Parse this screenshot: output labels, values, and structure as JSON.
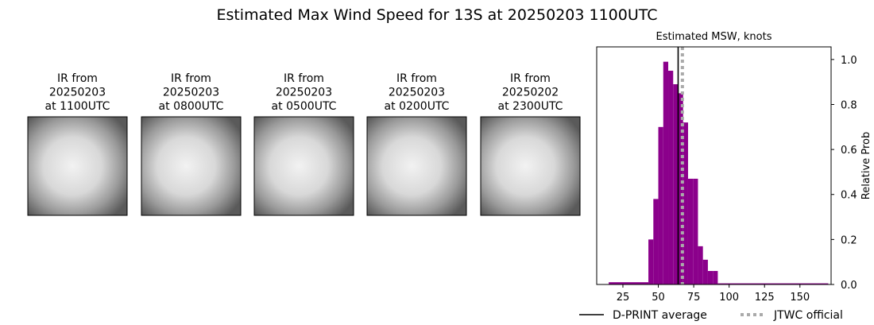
{
  "title": "Estimated Max Wind Speed for 13S at 20250203 1100UTC",
  "panels": [
    {
      "lines": [
        "IR from",
        "20250203",
        "at 1100UTC"
      ]
    },
    {
      "lines": [
        "IR from",
        "20250203",
        "at 0800UTC"
      ]
    },
    {
      "lines": [
        "IR from",
        "20250203",
        "at 0500UTC"
      ]
    },
    {
      "lines": [
        "IR from",
        "20250203",
        "at 0200UTC"
      ]
    },
    {
      "lines": [
        "IR from",
        "20250202",
        "at 2300UTC"
      ]
    }
  ],
  "chart_data": {
    "type": "histogram",
    "title": "Estimated MSW, knots",
    "y_label": "Relative Prob",
    "bins": [
      15,
      43,
      46.5,
      50,
      53.5,
      57,
      60.5,
      64,
      67.5,
      71,
      74.5,
      78,
      81.5,
      85,
      88.5,
      92,
      170
    ],
    "values": [
      0.01,
      0.2,
      0.38,
      0.7,
      0.99,
      0.95,
      0.89,
      0.85,
      0.72,
      0.47,
      0.47,
      0.17,
      0.11,
      0.06,
      0.06,
      0.005
    ],
    "color": "#8b008b",
    "xlim": [
      6.5,
      172
    ],
    "xticks": [
      25,
      50,
      75,
      100,
      125,
      150
    ],
    "ylim": [
      0,
      1.056
    ],
    "yticks": [
      {
        "value": 0,
        "label": "0.0"
      },
      0.2,
      0.4,
      0.6,
      0.8,
      {
        "value": 1,
        "label": "1.0"
      }
    ],
    "reference_lines": [
      {
        "name": "D-PRINT average",
        "value": 64,
        "color": "#000000",
        "style": "solid"
      },
      {
        "name": "JTWC official",
        "value": 67,
        "color": "#aaaaaa",
        "style": "dotted"
      }
    ]
  }
}
